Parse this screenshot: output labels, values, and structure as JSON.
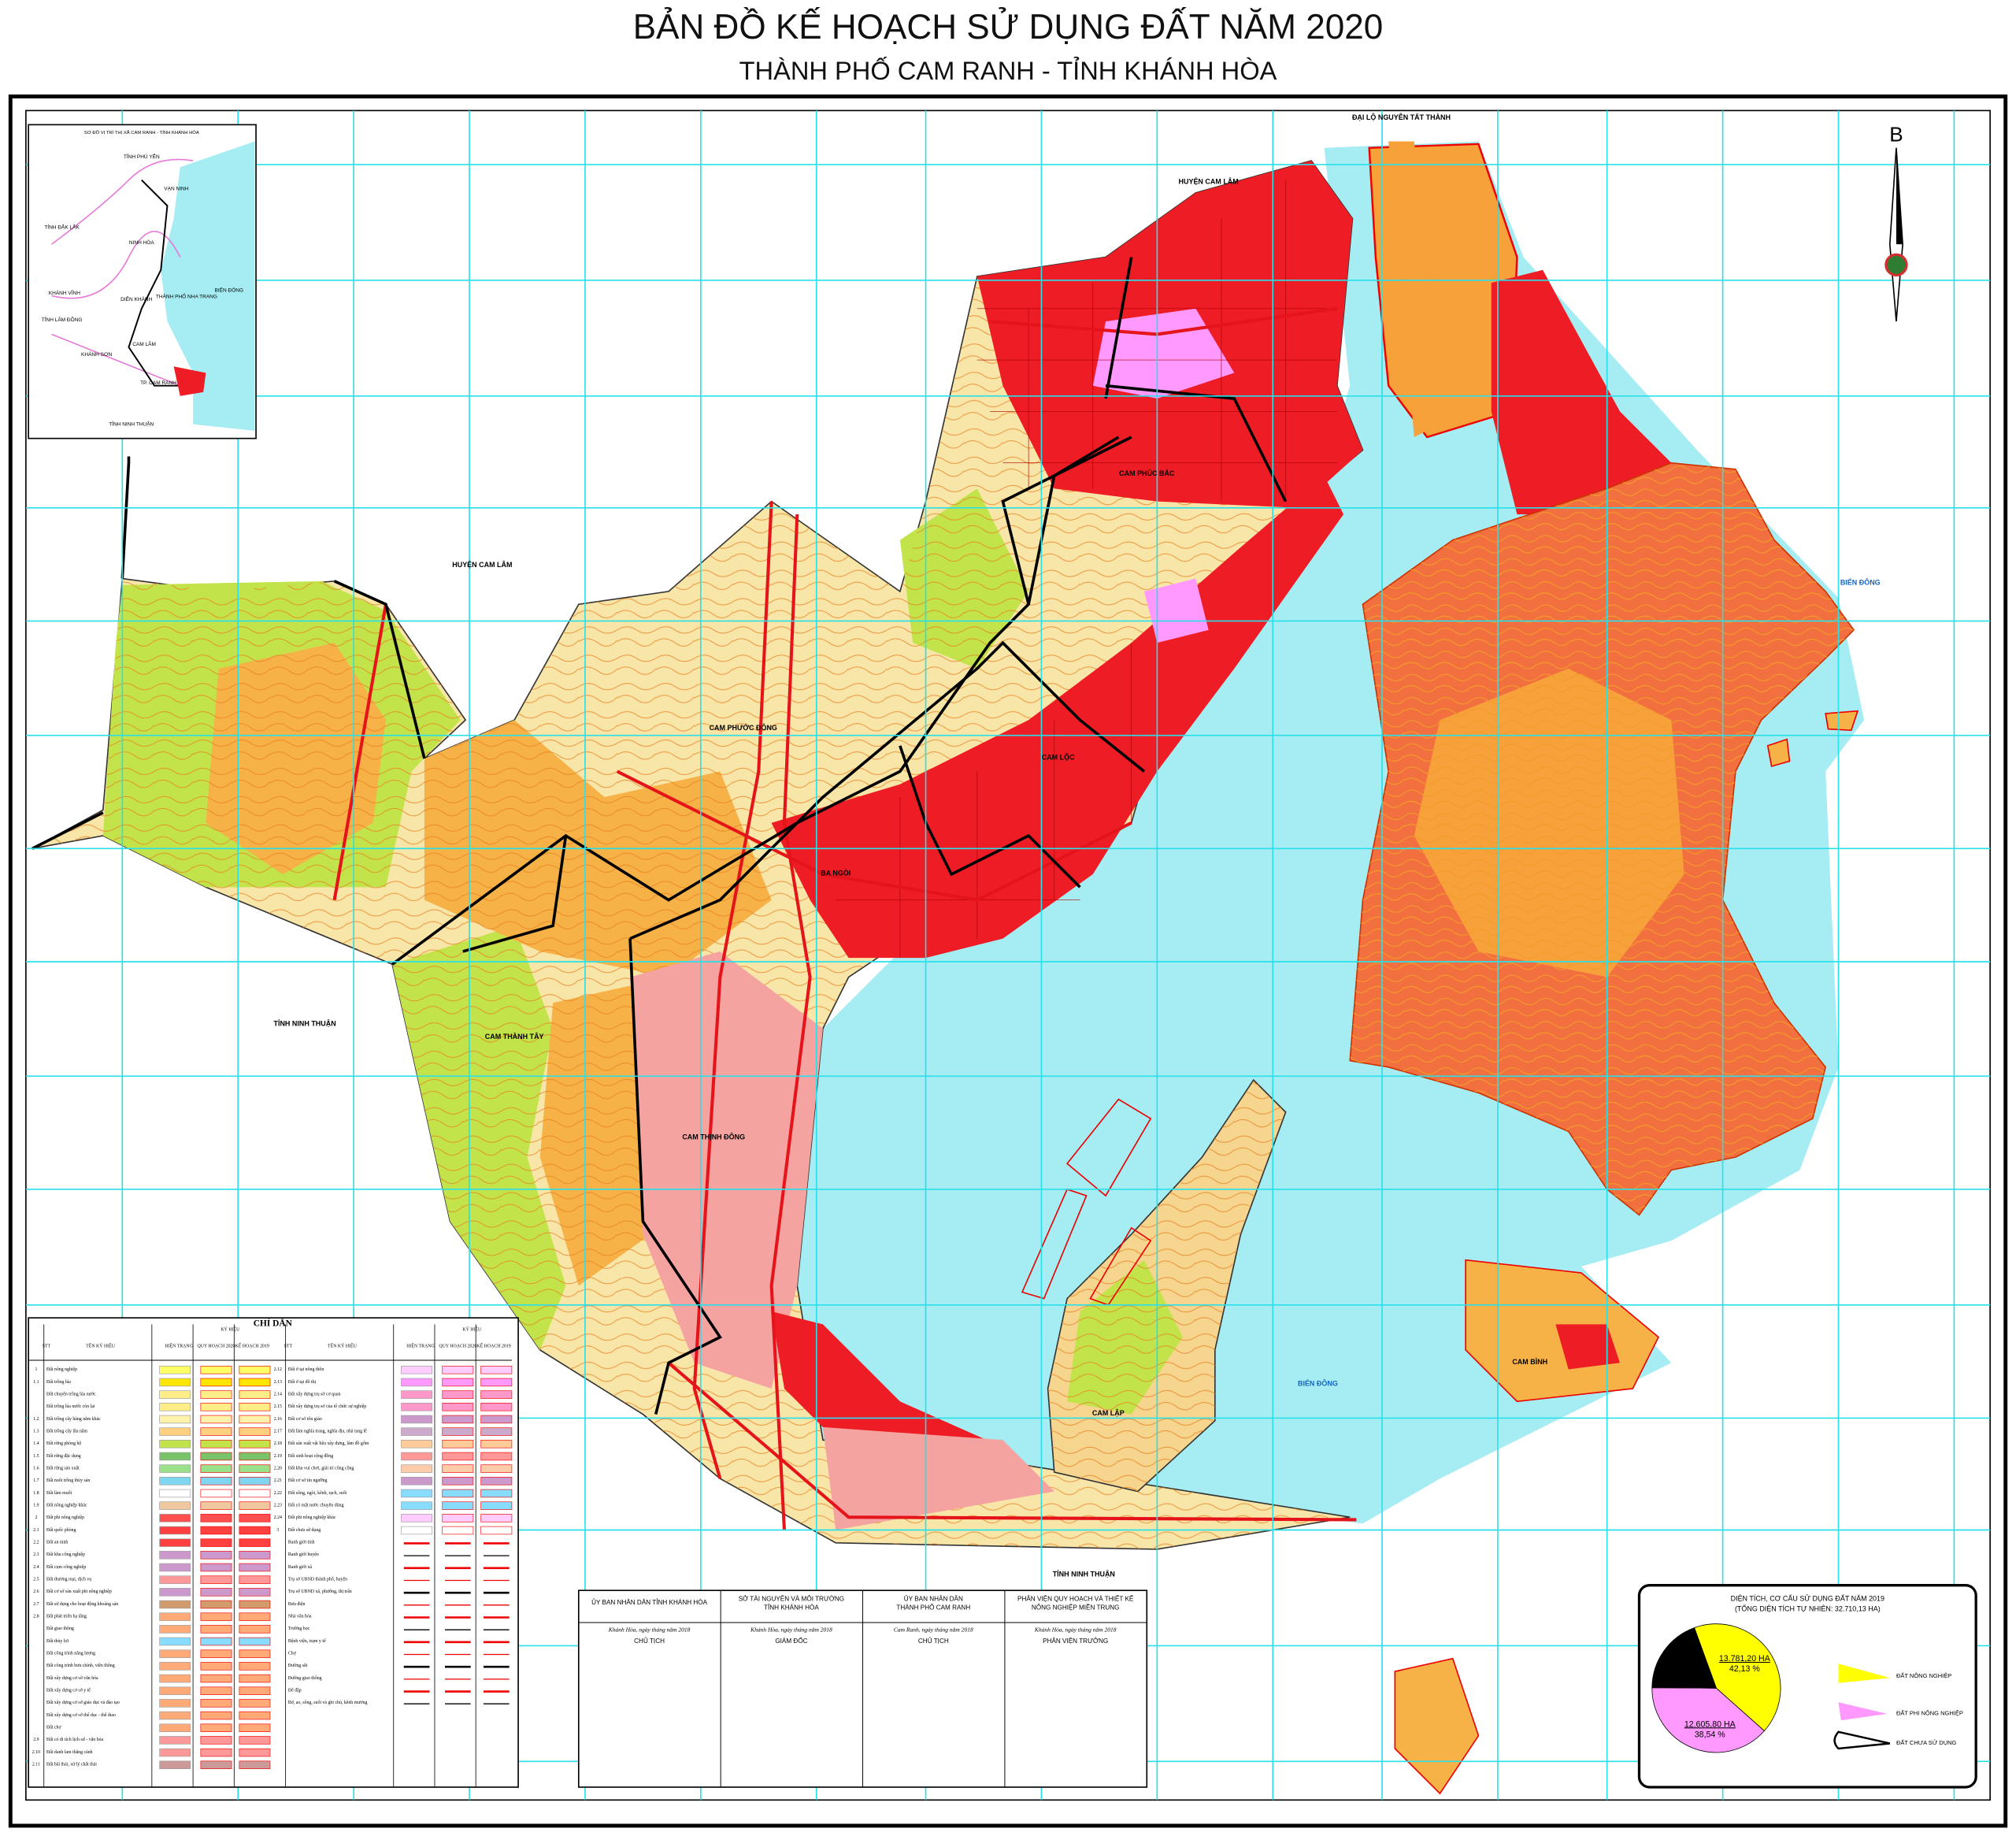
{
  "header": {
    "title": "BẢN ĐỒ KẾ HOẠCH SỬ DỤNG ĐẤT NĂM 2020",
    "subtitle": "THÀNH PHỐ CAM RANH - TỈNH KHÁNH HÒA"
  },
  "north_arrow": "B",
  "places": [
    "HUYỆN CAM LÂM",
    "HUYỆN CAM LÂM",
    "TỈNH NINH THUẬN",
    "TỈNH NINH THUẬN",
    "BIỂN ĐÔNG",
    "BIỂN ĐÔNG",
    "ĐẠI LỘ NGUYỄN TẤT THÀNH",
    "CAM PHÚC BẮC",
    "CAM LỘC",
    "CAM THÀNH TÂY",
    "CAM LẬP",
    "CAM BÌNH",
    "CAM PHƯỚC ĐÔNG",
    "CAM THỊNH ĐÔNG",
    "BA NGÒI"
  ],
  "inset": {
    "title": "SƠ ĐỒ VỊ TRÍ THỊ XÃ CAM RANH - TỈNH KHÁNH HÒA",
    "labels": [
      "TỈNH PHÚ YÊN",
      "VẠN NINH",
      "TỈNH ĐẮK LẮK",
      "NINH HÒA",
      "KHÁNH VĨNH",
      "DIÊN KHÁNH",
      "THÀNH PHỐ NHA TRANG",
      "TỈNH LÂM ĐỒNG",
      "CAM LÂM",
      "KHÁNH SƠN",
      "TP. CAM RANH",
      "TỈNH NINH THUẬN",
      "BIỂN ĐÔNG"
    ]
  },
  "legend": {
    "title": "CHỈ DẪN",
    "columns": [
      "STT",
      "TÊN KÝ HIỆU",
      "KÝ HIỆU",
      "HIỆN TRẠNG",
      "QUY HOẠCH 2020",
      "KẾ HOẠCH 2019"
    ],
    "left": [
      [
        "1",
        "Đất nông nghiệp"
      ],
      [
        "1.1",
        "Đất trồng lúa"
      ],
      [
        "",
        "Đất chuyên trồng lúa nước"
      ],
      [
        "",
        "Đất trồng lúa nước còn lại"
      ],
      [
        "1.2",
        "Đất trồng cây hàng năm khác"
      ],
      [
        "1.3",
        "Đất trồng cây lâu năm"
      ],
      [
        "1.4",
        "Đất rừng phòng hộ"
      ],
      [
        "1.5",
        "Đất rừng đặc dụng"
      ],
      [
        "1.6",
        "Đất rừng sản xuất"
      ],
      [
        "1.7",
        "Đất nuôi trồng thủy sản"
      ],
      [
        "1.8",
        "Đất làm muối"
      ],
      [
        "1.9",
        "Đất nông nghiệp khác"
      ],
      [
        "2",
        "Đất phi nông nghiệp"
      ],
      [
        "2.1",
        "Đất quốc phòng"
      ],
      [
        "2.2",
        "Đất an ninh"
      ],
      [
        "2.3",
        "Đất khu công nghiệp"
      ],
      [
        "2.4",
        "Đất cụm công nghiệp"
      ],
      [
        "2.5",
        "Đất thương mại, dịch vụ"
      ],
      [
        "2.6",
        "Đất cơ sở sản xuất phi nông nghiệp"
      ],
      [
        "2.7",
        "Đất sử dụng cho hoạt động khoáng sản"
      ],
      [
        "2.8",
        "Đất phát triển hạ tầng"
      ],
      [
        "",
        "Đất giao thông"
      ],
      [
        "",
        "Đất thủy lợi"
      ],
      [
        "",
        "Đất công trình năng lượng"
      ],
      [
        "",
        "Đất công trình bưu chính, viễn thông"
      ],
      [
        "",
        "Đất xây dựng cơ sở văn hóa"
      ],
      [
        "",
        "Đất xây dựng cơ sở y tế"
      ],
      [
        "",
        "Đất xây dựng cơ sở giáo dục và đào tạo"
      ],
      [
        "",
        "Đất xây dựng cơ sở thể dục - thể thao"
      ],
      [
        "",
        "Đất chợ"
      ],
      [
        "2.9",
        "Đất có di tích lịch sử - văn hóa"
      ],
      [
        "2.10",
        "Đất danh lam thắng cảnh"
      ],
      [
        "2.11",
        "Đất bãi thải, xử lý chất thải"
      ]
    ],
    "right": [
      [
        "2.12",
        "Đất ở tại nông thôn"
      ],
      [
        "2.13",
        "Đất ở tại đô thị"
      ],
      [
        "2.14",
        "Đất xây dựng trụ sở cơ quan"
      ],
      [
        "2.15",
        "Đất xây dựng trụ sở của tổ chức sự nghiệp"
      ],
      [
        "2.16",
        "Đất cơ sở tôn giáo"
      ],
      [
        "2.17",
        "Đất làm nghĩa trang, nghĩa địa, nhà tang lễ"
      ],
      [
        "2.18",
        "Đất sản xuất vật liệu xây dựng, làm đồ gốm"
      ],
      [
        "2.19",
        "Đất sinh hoạt cộng đồng"
      ],
      [
        "2.20",
        "Đất khu vui chơi, giải trí công cộng"
      ],
      [
        "2.21",
        "Đất cơ sở tín ngưỡng"
      ],
      [
        "2.22",
        "Đất sông, ngòi, kênh, rạch, suối"
      ],
      [
        "2.23",
        "Đất có mặt nước chuyên dùng"
      ],
      [
        "2.24",
        "Đất phi nông nghiệp khác"
      ],
      [
        "3",
        "Đất chưa sử dụng"
      ],
      [
        "",
        "Ranh giới tỉnh"
      ],
      [
        "",
        "Ranh giới huyện"
      ],
      [
        "",
        "Ranh giới xã"
      ],
      [
        "",
        "Trụ sở UBND thành phố, huyện"
      ],
      [
        "",
        "Trụ sở UBND xã, phường, thị trấn"
      ],
      [
        "",
        "Bưu điện"
      ],
      [
        "",
        "Nhà văn hóa"
      ],
      [
        "",
        "Trường học"
      ],
      [
        "",
        "Bệnh viện, trạm y tế"
      ],
      [
        "",
        "Chợ"
      ],
      [
        "",
        "Đường sắt"
      ],
      [
        "",
        "Đường giao thông"
      ],
      [
        "",
        "Đê đập"
      ],
      [
        "",
        "Bờ, ao, sông, suối và ghi chú, kênh mương"
      ]
    ]
  },
  "signatures": [
    {
      "org": [
        "ỦY BAN NHÂN DÂN TỈNH KHÁNH HÒA"
      ],
      "date": "Khánh Hòa, ngày     tháng     năm 2018",
      "role": "CHỦ TỊCH"
    },
    {
      "org": [
        "SỞ TÀI NGUYÊN VÀ MÔI TRƯỜNG",
        "TỈNH KHÁNH HÒA"
      ],
      "date": "Khánh Hòa, ngày     tháng     năm 2018",
      "role": "GIÁM ĐỐC"
    },
    {
      "org": [
        "ỦY BAN NHÂN DÂN",
        "THÀNH PHỐ CAM RANH"
      ],
      "date": "Cam Ranh, ngày     tháng     năm 2018",
      "role": "CHỦ TỊCH"
    },
    {
      "org": [
        "PHÂN VIỆN QUY HOẠCH VÀ THIẾT KẾ",
        "NÔNG NGHIỆP MIỀN TRUNG"
      ],
      "date": "Khánh Hòa, ngày     tháng     năm 2018",
      "role": "PHÂN VIỆN TRƯỞNG"
    }
  ],
  "chart_data": {
    "type": "pie",
    "title": "DIỆN TÍCH, CƠ CẤU SỬ DỤNG ĐẤT NĂM 2019",
    "subtitle": "(TỔNG DIỆN TÍCH TỰ NHIÊN: 32.710,13 HA)",
    "categories": [
      "ĐẤT NÔNG NGHIỆP",
      "ĐẤT PHI NÔNG NGHIỆP",
      "ĐẤT CHƯA SỬ DỤNG"
    ],
    "values": [
      42.13,
      38.54,
      19.33
    ],
    "value_labels": [
      "42,13 %",
      "38,54 %",
      null
    ],
    "area_labels": [
      "13.781,20 HA",
      "12.605,80 HA",
      null
    ],
    "colors": [
      "#ffff00",
      "#ff99ff",
      "#000000"
    ]
  }
}
